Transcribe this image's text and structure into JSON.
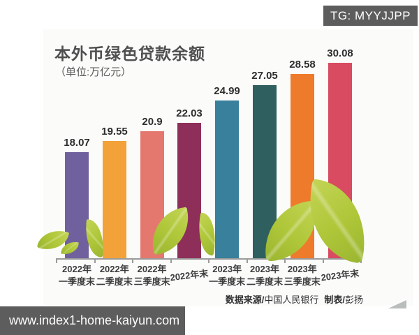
{
  "watermarks": {
    "top_right": "TG: MYYJJPP",
    "bottom_left": "www.index1-home-kaiyun.com"
  },
  "header": {
    "title": "本外币绿色贷款余额",
    "subtitle": "（单位:万亿元）"
  },
  "footer": {
    "source_label": "数据来源/",
    "source_value": "中国人民银行",
    "credit_label": "制表/",
    "credit_value": "彭扬"
  },
  "chart_data": {
    "type": "bar",
    "title": "本外币绿色贷款余额",
    "unit": "万亿元",
    "categories": [
      "2022年一季度末",
      "2022年二季度末",
      "2022年三季度末",
      "2022年末",
      "2023年一季度末",
      "2023年二季度末",
      "2023年三季度末",
      "2023年末"
    ],
    "category_lines": [
      [
        "2022年",
        "一季度末"
      ],
      [
        "2022年",
        "二季度末"
      ],
      [
        "2022年",
        "三季度末"
      ],
      [
        "2022年末"
      ],
      [
        "2023年",
        "一季度末"
      ],
      [
        "2023年",
        "二季度末"
      ],
      [
        "2023年",
        "三季度末"
      ],
      [
        "2023年末"
      ]
    ],
    "values": [
      18.07,
      19.55,
      20.9,
      22.03,
      24.99,
      27.05,
      28.58,
      30.08
    ],
    "value_labels": [
      "18.07",
      "19.55",
      "20.9",
      "22.03",
      "24.99",
      "27.05",
      "28.58",
      "30.08"
    ],
    "bar_colors": [
      "#70619e",
      "#f2a238",
      "#e4786e",
      "#8e2f59",
      "#38809b",
      "#2f605f",
      "#ee7a2c",
      "#d84b60"
    ],
    "baseline": 3.7,
    "ymax": 31,
    "grid": false,
    "legend": false,
    "source": "数据来源/中国人民银行 制表/彭扬",
    "decoration": "green-leaves"
  }
}
